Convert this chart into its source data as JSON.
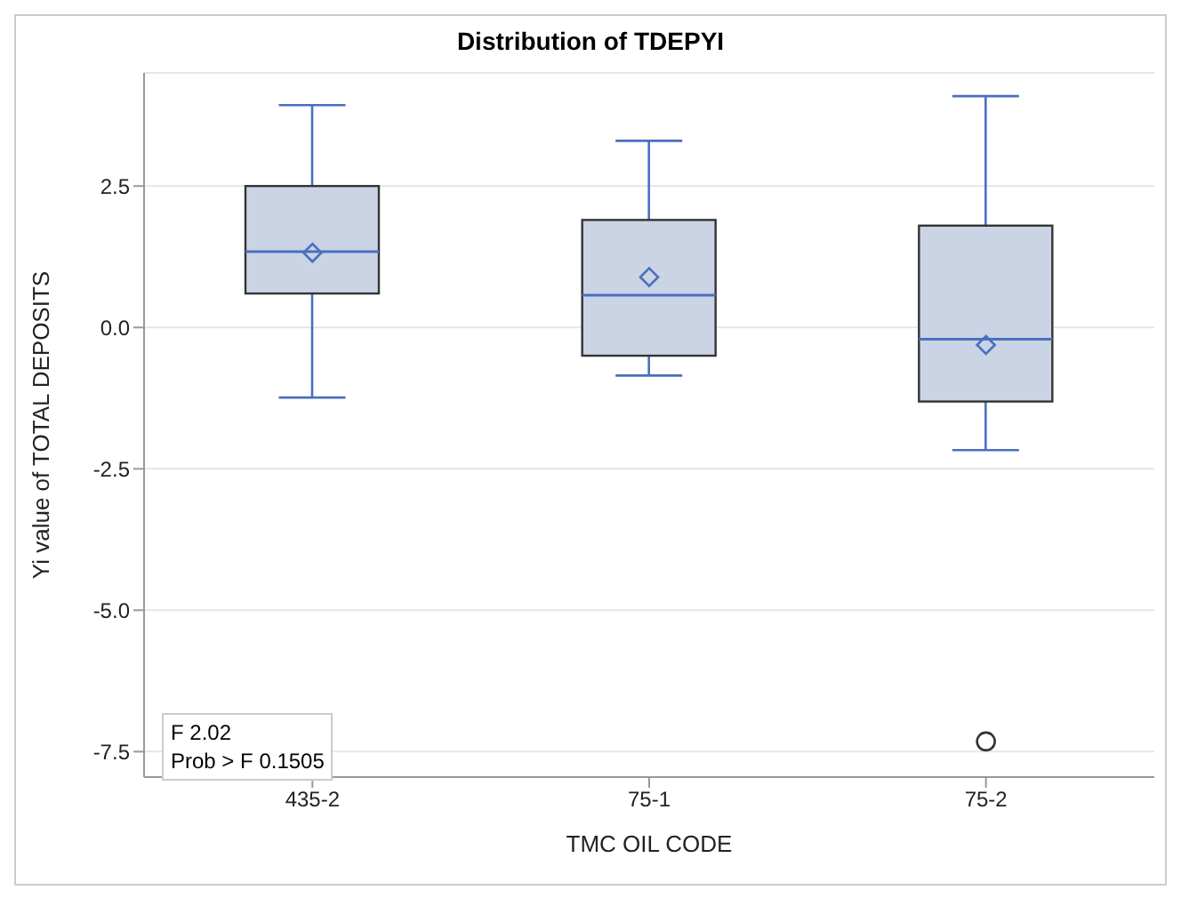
{
  "chart_data": {
    "type": "box",
    "title": "Distribution of TDEPYI",
    "xlabel": "TMC OIL CODE",
    "ylabel": "Yi value of TOTAL DEPOSITS",
    "categories": [
      "435-2",
      "75-1",
      "75-2"
    ],
    "series": [
      {
        "color": "#cad4e5",
        "boxes": [
          {
            "low": -1.24,
            "q1": 0.6,
            "median": 1.34,
            "q3": 2.5,
            "high": 3.93,
            "mean": 1.32
          },
          {
            "low": -0.85,
            "q1": -0.5,
            "median": 0.57,
            "q3": 1.9,
            "high": 3.3,
            "mean": 0.89
          },
          {
            "low": -2.17,
            "q1": -1.31,
            "median": -0.21,
            "q3": 1.8,
            "high": 4.09,
            "mean": -0.31,
            "outliers": [
              -7.32
            ]
          }
        ]
      }
    ],
    "ylim": [
      -7.95,
      4.5
    ],
    "yticks": [
      -7.5,
      {
        "value": -5,
        "label": "-5.0"
      },
      -2.5,
      {
        "value": 0,
        "label": "0.0"
      },
      2.5
    ],
    "grid": "y",
    "marker": "diamond",
    "annotations": [
      "F 2.02",
      "Prob > F 0.1505"
    ]
  }
}
